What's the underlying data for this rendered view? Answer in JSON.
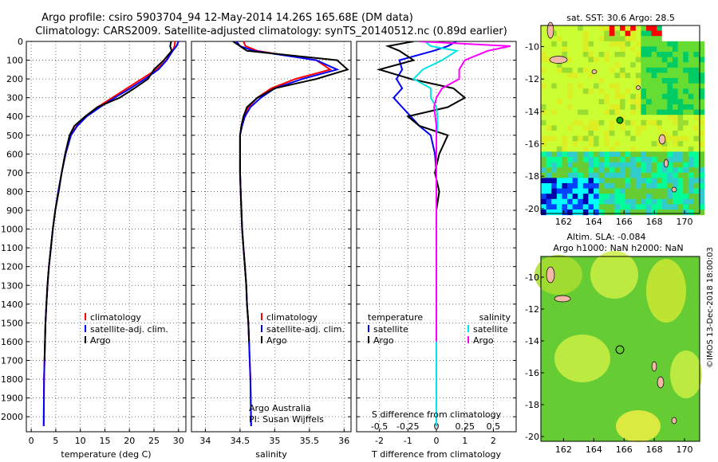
{
  "titles": {
    "line1": "Argo profile: csiro 5903704_94 12-May-2014 14.26S 165.68E (DM data)",
    "line2": "Climatology: CARS2009. Satellite-adjusted climatology: synTS_20140512.nc (0.89d earlier)"
  },
  "colors": {
    "climatology": "#ff0000",
    "satellite": "#0000ff",
    "argo": "#000000",
    "sal_satellite": "#00e5e5",
    "sal_argo": "#ff00ff"
  },
  "panels": {
    "temperature": {
      "xlabel": "temperature (deg C)",
      "xticks": [
        "0",
        "5",
        "10",
        "15",
        "20",
        "25",
        "30"
      ],
      "legend": [
        "climatology",
        "satellite-adj. clim.",
        "Argo"
      ]
    },
    "salinity": {
      "xlabel": "salinity",
      "xticks": [
        "34",
        "34.5",
        "35",
        "35.5",
        "36"
      ],
      "legend": [
        "climatology",
        "satellite-adj. clim.",
        "Argo"
      ],
      "note1": "Argo Australia",
      "note2": "PI: Susan Wijffels"
    },
    "difference": {
      "xlabel_bottom": "T difference from climatology",
      "xticks_bottom": [
        "-2",
        "-1",
        "0",
        "1",
        "2"
      ],
      "xlabel_top": "S difference from climatology",
      "xticks_top": [
        "-0.5",
        "-0.25",
        "0",
        "0.25",
        "0.5"
      ],
      "legend_left_title": "temperature",
      "legend_right_title": "salinity",
      "legend_left": [
        "satellite",
        "Argo"
      ],
      "legend_right": [
        "satellite",
        "Argo"
      ]
    },
    "yticks": [
      "0",
      "100",
      "200",
      "300",
      "400",
      "500",
      "600",
      "700",
      "800",
      "900",
      "1000",
      "1100",
      "1200",
      "1300",
      "1400",
      "1500",
      "1600",
      "1700",
      "1800",
      "1900",
      "2000"
    ]
  },
  "maps": {
    "sst_title": "sat. SST: 30.6 Argo: 28.5",
    "sla_title1": "Altim. SLA: -0.084",
    "sla_title2": "Argo h1000: NaN h2000: NaN",
    "xticks": [
      "162",
      "164",
      "166",
      "168",
      "170"
    ],
    "yticks": [
      "-10",
      "-12",
      "-14",
      "-16",
      "-18",
      "-20"
    ],
    "credit": "©IMOS 13-Dec-2018 18:00:03"
  },
  "chart_data": [
    {
      "type": "line",
      "title": "",
      "xlabel": "temperature (deg C)",
      "ylabel": "",
      "xlim": [
        -1,
        31.5
      ],
      "ylim": [
        2080,
        0
      ],
      "grid": true,
      "legend": "bottom-right",
      "series": [
        {
          "name": "climatology",
          "x": [
            29.3,
            29.2,
            28.8,
            27.5,
            25.5,
            22.5,
            19.5,
            16.5,
            13.5,
            11.0,
            9.3,
            8.0,
            7.0,
            6.2,
            5.5,
            4.9,
            4.4,
            4.0,
            3.6,
            3.3,
            3.1,
            2.9,
            2.8,
            2.7,
            2.6,
            2.55
          ],
          "y": [
            0,
            25,
            50,
            100,
            150,
            200,
            250,
            300,
            350,
            400,
            450,
            500,
            600,
            700,
            800,
            900,
            1000,
            1100,
            1200,
            1300,
            1400,
            1500,
            1600,
            1700,
            1800,
            2050
          ]
        },
        {
          "name": "satellite-adj. clim.",
          "x": [
            30.0,
            29.6,
            28.8,
            27.6,
            25.9,
            23.2,
            20.2,
            17.0,
            14.0,
            11.3,
            9.4,
            8.1,
            7.0,
            6.2,
            5.5,
            4.9,
            4.4,
            4.0,
            3.6,
            3.3,
            3.1,
            2.9,
            2.8,
            2.7,
            2.6,
            2.55
          ],
          "y": [
            0,
            25,
            50,
            100,
            150,
            200,
            250,
            300,
            350,
            400,
            450,
            500,
            600,
            700,
            800,
            900,
            1000,
            1100,
            1200,
            1300,
            1400,
            1500,
            1600,
            1700,
            1800,
            2050
          ]
        },
        {
          "name": "Argo",
          "x": [
            28.5,
            28.3,
            28.6,
            27.0,
            25.0,
            23.8,
            21.0,
            18.0,
            13.5,
            11.0,
            8.8,
            7.8,
            6.9,
            6.2,
            5.6,
            4.9,
            4.4,
            4.0,
            3.6,
            3.3,
            3.1,
            2.9,
            2.8,
            2.7
          ],
          "y": [
            0,
            25,
            50,
            100,
            150,
            200,
            250,
            300,
            350,
            400,
            450,
            500,
            600,
            700,
            800,
            900,
            1000,
            1100,
            1200,
            1300,
            1400,
            1500,
            1600,
            1700
          ]
        }
      ]
    },
    {
      "type": "line",
      "title": "",
      "xlabel": "salinity",
      "ylabel": "",
      "xlim": [
        33.8,
        36.1
      ],
      "ylim": [
        2080,
        0
      ],
      "grid": true,
      "legend": "bottom-right",
      "series": [
        {
          "name": "climatology",
          "x": [
            34.55,
            34.58,
            34.75,
            35.6,
            35.8,
            35.3,
            34.95,
            34.75,
            34.62,
            34.55,
            34.52,
            34.5,
            34.5,
            34.5,
            34.51,
            34.52,
            34.53,
            34.55,
            34.57,
            34.59,
            34.6,
            34.62,
            34.63,
            34.64,
            34.65,
            34.66
          ],
          "y": [
            0,
            25,
            50,
            100,
            150,
            200,
            250,
            300,
            350,
            400,
            450,
            500,
            600,
            700,
            800,
            900,
            1000,
            1100,
            1200,
            1300,
            1400,
            1500,
            1600,
            1700,
            1800,
            2050
          ]
        },
        {
          "name": "satellite-adj. clim.",
          "x": [
            34.45,
            34.5,
            34.7,
            35.6,
            35.9,
            35.4,
            35.0,
            34.8,
            34.65,
            34.57,
            34.53,
            34.5,
            34.5,
            34.5,
            34.51,
            34.52,
            34.53,
            34.55,
            34.57,
            34.59,
            34.6,
            34.62,
            34.63,
            34.64,
            34.65,
            34.66
          ],
          "y": [
            0,
            25,
            50,
            100,
            150,
            200,
            250,
            300,
            350,
            400,
            450,
            500,
            600,
            700,
            800,
            900,
            1000,
            1100,
            1200,
            1300,
            1400,
            1500,
            1600,
            1700,
            1800,
            2050
          ]
        },
        {
          "name": "Argo",
          "x": [
            34.4,
            34.5,
            34.6,
            35.9,
            36.05,
            35.6,
            35.0,
            34.75,
            34.6,
            34.55,
            34.52,
            34.5,
            34.5,
            34.5,
            34.51,
            34.52,
            34.53,
            34.55,
            34.57,
            34.59,
            34.6,
            34.62,
            34.63
          ],
          "y": [
            0,
            25,
            50,
            100,
            150,
            200,
            250,
            300,
            350,
            400,
            450,
            500,
            600,
            700,
            800,
            900,
            1000,
            1100,
            1200,
            1300,
            1400,
            1500,
            1600
          ]
        }
      ]
    },
    {
      "type": "line",
      "title": "",
      "xlabel": "T difference from climatology",
      "x2label": "S difference from climatology",
      "ylabel": "",
      "xlim": [
        -2.8,
        2.8
      ],
      "x2lim": [
        -0.7,
        0.7
      ],
      "ylim": [
        2080,
        0
      ],
      "grid": true,
      "legend": "bottom",
      "series": [
        {
          "name": "temperature satellite",
          "x": [
            0.7,
            0.4,
            -0.1,
            -1.3,
            -1.2,
            -1.4,
            -1.2,
            -1.5,
            -1.2,
            -0.9,
            -0.6,
            -0.2,
            -0.05,
            0,
            0,
            0,
            0,
            0,
            0,
            0,
            0,
            0,
            0,
            0,
            0
          ],
          "y": [
            0,
            25,
            50,
            100,
            150,
            200,
            250,
            300,
            350,
            400,
            450,
            500,
            600,
            700,
            800,
            900,
            1000,
            1100,
            1200,
            1300,
            1400,
            1500,
            1600,
            1700,
            2050
          ]
        },
        {
          "name": "temperature Argo",
          "x": [
            -0.8,
            -1.7,
            -1.3,
            -0.8,
            -2.0,
            -0.9,
            0.6,
            1.0,
            0.4,
            -1.0,
            -0.6,
            0.4,
            0.1,
            -0.05,
            0.1,
            0,
            0,
            0,
            0,
            0,
            0,
            0,
            0
          ],
          "y": [
            0,
            25,
            50,
            100,
            150,
            200,
            250,
            300,
            350,
            400,
            450,
            500,
            600,
            700,
            800,
            900,
            1000,
            1100,
            1200,
            1300,
            1400,
            1500,
            1600
          ]
        },
        {
          "name": "salinity satellite",
          "x": [
            -0.1,
            -0.05,
            0.18,
            0.05,
            -0.12,
            -0.2,
            -0.05,
            -0.05,
            0.0,
            0.01,
            0.01,
            0,
            0,
            0,
            0,
            0,
            0,
            0,
            0,
            0,
            0,
            0,
            0,
            0,
            0
          ],
          "y": [
            0,
            25,
            50,
            100,
            150,
            200,
            250,
            300,
            350,
            400,
            450,
            500,
            600,
            700,
            800,
            900,
            1000,
            1100,
            1200,
            1300,
            1400,
            1500,
            1600,
            1700,
            2050
          ]
        },
        {
          "name": "salinity Argo",
          "x": [
            -0.15,
            0.65,
            0.45,
            0.25,
            0.2,
            0.2,
            0.05,
            0.0,
            -0.02,
            -0.01,
            0,
            0,
            0,
            0,
            0,
            0,
            0,
            0,
            0,
            0,
            0,
            0
          ],
          "y": [
            0,
            25,
            50,
            100,
            150,
            200,
            250,
            300,
            350,
            400,
            450,
            500,
            600,
            700,
            800,
            900,
            1000,
            1100,
            1200,
            1300,
            1400,
            1600
          ]
        }
      ]
    }
  ]
}
